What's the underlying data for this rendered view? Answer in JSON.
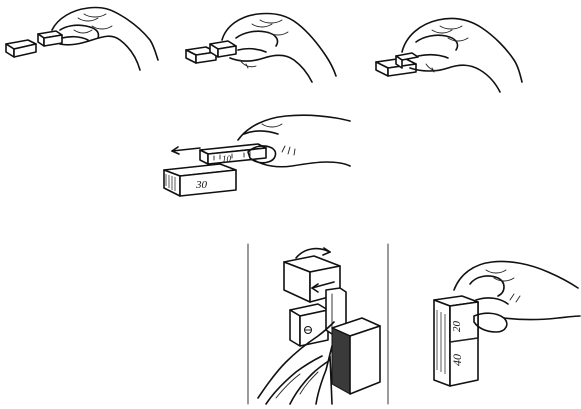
{
  "block_labels": {
    "middle_small": "10",
    "middle_large": "30",
    "right_top": "20",
    "right_bottom": "40"
  }
}
